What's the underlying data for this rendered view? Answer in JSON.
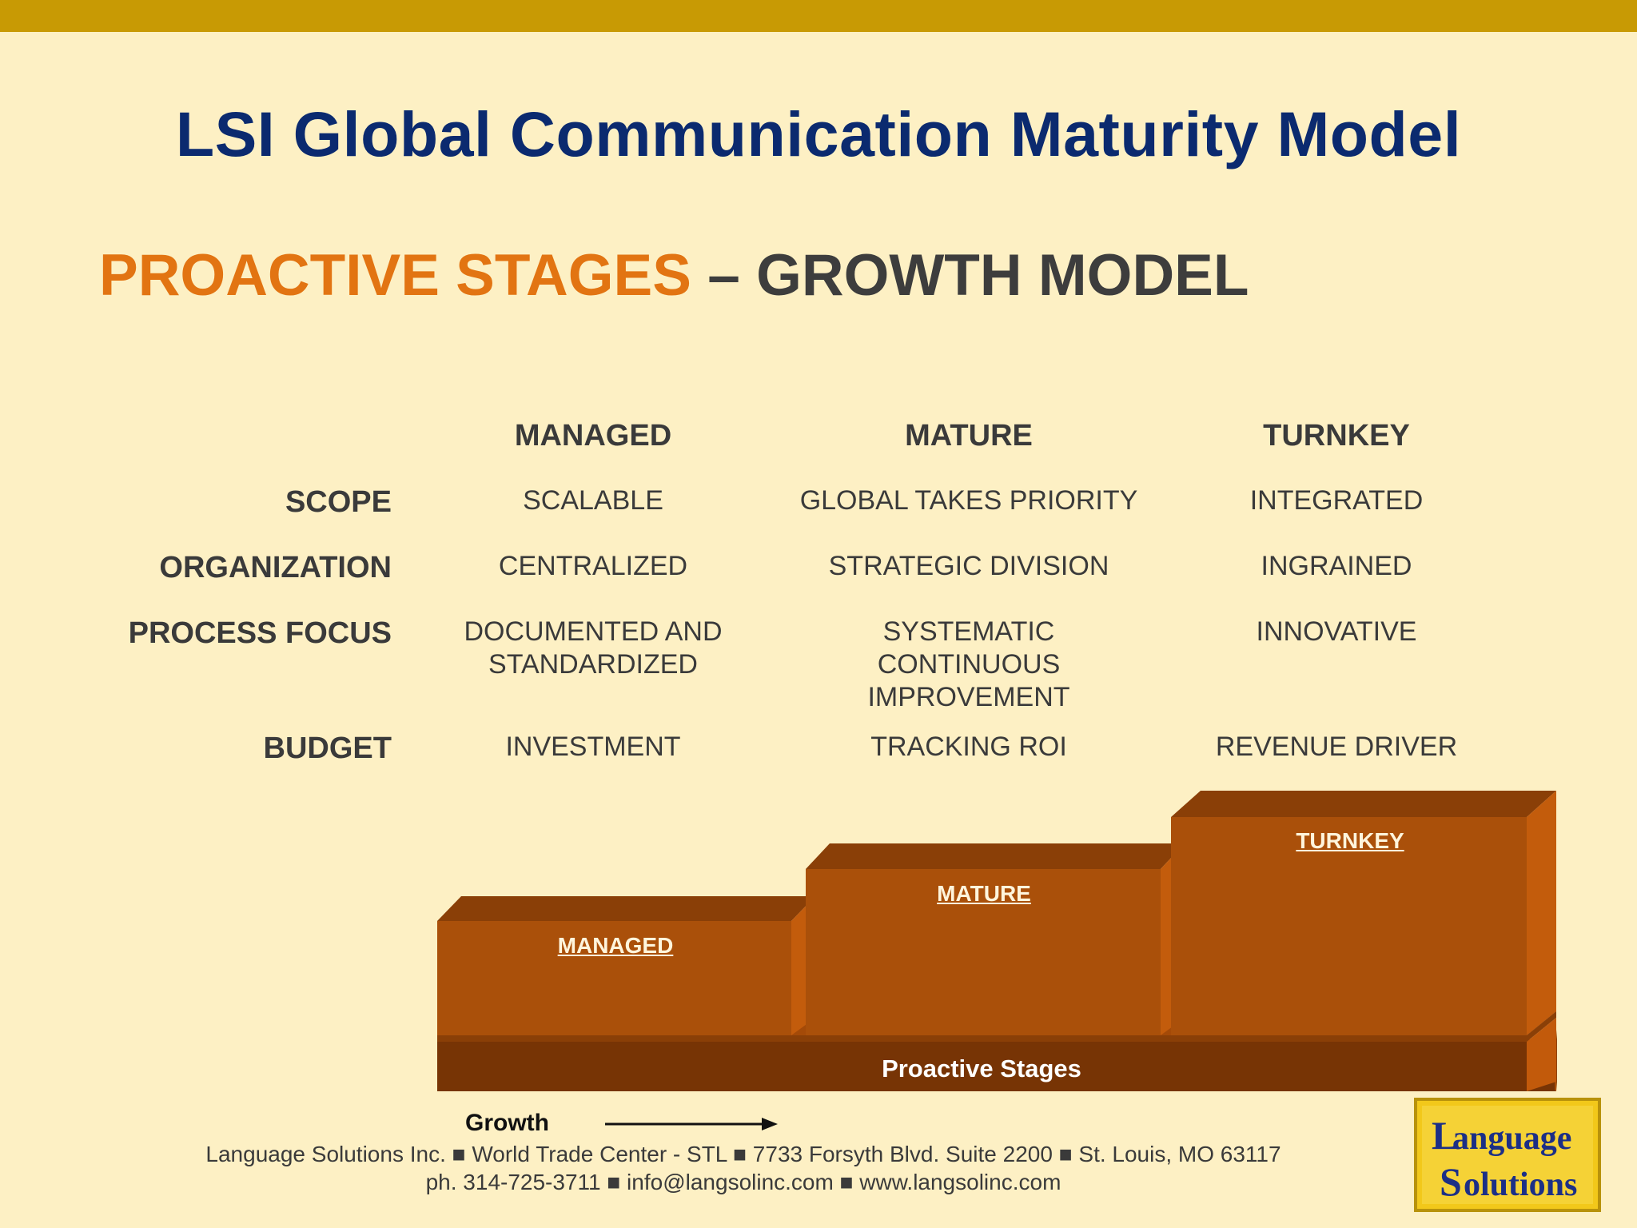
{
  "title": "LSI Global Communication Maturity Model",
  "subtitle": {
    "part1": "PROACTIVE STAGES",
    "part2": " – GROWTH MODEL"
  },
  "columns": [
    "MANAGED",
    "MATURE",
    "TURNKEY"
  ],
  "rows": [
    {
      "label": "SCOPE",
      "values": [
        "SCALABLE",
        "GLOBAL TAKES PRIORITY",
        "INTEGRATED"
      ]
    },
    {
      "label": "ORGANIZATION",
      "values": [
        "CENTRALIZED",
        "STRATEGIC DIVISION",
        "INGRAINED"
      ]
    },
    {
      "label": "PROCESS FOCUS",
      "values": [
        "DOCUMENTED AND\nSTANDARDIZED",
        "SYSTEMATIC\nCONTINUOUS\nIMPROVEMENT",
        "INNOVATIVE"
      ]
    },
    {
      "label": "BUDGET",
      "values": [
        "INVESTMENT",
        "TRACKING ROI",
        "REVENUE DRIVER"
      ]
    }
  ],
  "stairs": {
    "managed": "MANAGED",
    "mature": "MATURE",
    "turnkey": "TURNKEY",
    "base": "Proactive Stages"
  },
  "growth_label": "Growth",
  "footer": {
    "line1": "Language Solutions Inc. ■ World Trade Center - STL ■ 7733 Forsyth Blvd. Suite 2200 ■ St. Louis, MO 63117",
    "line2": "ph. 314-725-3711 ■ info@langsolinc.com ■ www.langsolinc.com"
  },
  "logo": {
    "line1": "Language",
    "line2": "Solutions"
  },
  "colors": {
    "topbar": "#c89a04",
    "title": "#0b2a6f",
    "accent": "#e27412",
    "stair": "#b4520a",
    "base": "#7a3606"
  }
}
